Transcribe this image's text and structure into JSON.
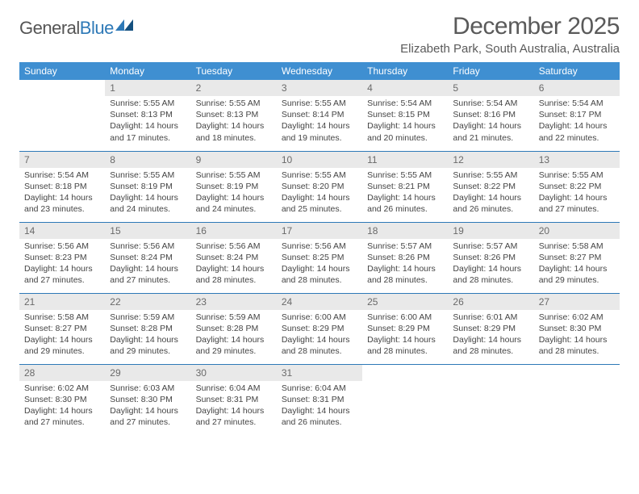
{
  "brand": {
    "text1": "General",
    "text2": "Blue",
    "mark_color": "#2e79b7",
    "text1_color": "#555555"
  },
  "title": {
    "month": "December 2025",
    "location": "Elizabeth Park, South Australia, Australia"
  },
  "colors": {
    "header_bg": "#3f8fd1",
    "header_text": "#ffffff",
    "daynum_bg": "#e9e9e9",
    "daynum_text": "#6a6a6a",
    "row_border": "#2e79b7",
    "body_text": "#444444"
  },
  "weekdays": [
    "Sunday",
    "Monday",
    "Tuesday",
    "Wednesday",
    "Thursday",
    "Friday",
    "Saturday"
  ],
  "weeks": [
    [
      {
        "n": "",
        "sunrise": "",
        "sunset": "",
        "daylight": ""
      },
      {
        "n": "1",
        "sunrise": "Sunrise: 5:55 AM",
        "sunset": "Sunset: 8:13 PM",
        "daylight": "Daylight: 14 hours and 17 minutes."
      },
      {
        "n": "2",
        "sunrise": "Sunrise: 5:55 AM",
        "sunset": "Sunset: 8:13 PM",
        "daylight": "Daylight: 14 hours and 18 minutes."
      },
      {
        "n": "3",
        "sunrise": "Sunrise: 5:55 AM",
        "sunset": "Sunset: 8:14 PM",
        "daylight": "Daylight: 14 hours and 19 minutes."
      },
      {
        "n": "4",
        "sunrise": "Sunrise: 5:54 AM",
        "sunset": "Sunset: 8:15 PM",
        "daylight": "Daylight: 14 hours and 20 minutes."
      },
      {
        "n": "5",
        "sunrise": "Sunrise: 5:54 AM",
        "sunset": "Sunset: 8:16 PM",
        "daylight": "Daylight: 14 hours and 21 minutes."
      },
      {
        "n": "6",
        "sunrise": "Sunrise: 5:54 AM",
        "sunset": "Sunset: 8:17 PM",
        "daylight": "Daylight: 14 hours and 22 minutes."
      }
    ],
    [
      {
        "n": "7",
        "sunrise": "Sunrise: 5:54 AM",
        "sunset": "Sunset: 8:18 PM",
        "daylight": "Daylight: 14 hours and 23 minutes."
      },
      {
        "n": "8",
        "sunrise": "Sunrise: 5:55 AM",
        "sunset": "Sunset: 8:19 PM",
        "daylight": "Daylight: 14 hours and 24 minutes."
      },
      {
        "n": "9",
        "sunrise": "Sunrise: 5:55 AM",
        "sunset": "Sunset: 8:19 PM",
        "daylight": "Daylight: 14 hours and 24 minutes."
      },
      {
        "n": "10",
        "sunrise": "Sunrise: 5:55 AM",
        "sunset": "Sunset: 8:20 PM",
        "daylight": "Daylight: 14 hours and 25 minutes."
      },
      {
        "n": "11",
        "sunrise": "Sunrise: 5:55 AM",
        "sunset": "Sunset: 8:21 PM",
        "daylight": "Daylight: 14 hours and 26 minutes."
      },
      {
        "n": "12",
        "sunrise": "Sunrise: 5:55 AM",
        "sunset": "Sunset: 8:22 PM",
        "daylight": "Daylight: 14 hours and 26 minutes."
      },
      {
        "n": "13",
        "sunrise": "Sunrise: 5:55 AM",
        "sunset": "Sunset: 8:22 PM",
        "daylight": "Daylight: 14 hours and 27 minutes."
      }
    ],
    [
      {
        "n": "14",
        "sunrise": "Sunrise: 5:56 AM",
        "sunset": "Sunset: 8:23 PM",
        "daylight": "Daylight: 14 hours and 27 minutes."
      },
      {
        "n": "15",
        "sunrise": "Sunrise: 5:56 AM",
        "sunset": "Sunset: 8:24 PM",
        "daylight": "Daylight: 14 hours and 27 minutes."
      },
      {
        "n": "16",
        "sunrise": "Sunrise: 5:56 AM",
        "sunset": "Sunset: 8:24 PM",
        "daylight": "Daylight: 14 hours and 28 minutes."
      },
      {
        "n": "17",
        "sunrise": "Sunrise: 5:56 AM",
        "sunset": "Sunset: 8:25 PM",
        "daylight": "Daylight: 14 hours and 28 minutes."
      },
      {
        "n": "18",
        "sunrise": "Sunrise: 5:57 AM",
        "sunset": "Sunset: 8:26 PM",
        "daylight": "Daylight: 14 hours and 28 minutes."
      },
      {
        "n": "19",
        "sunrise": "Sunrise: 5:57 AM",
        "sunset": "Sunset: 8:26 PM",
        "daylight": "Daylight: 14 hours and 28 minutes."
      },
      {
        "n": "20",
        "sunrise": "Sunrise: 5:58 AM",
        "sunset": "Sunset: 8:27 PM",
        "daylight": "Daylight: 14 hours and 29 minutes."
      }
    ],
    [
      {
        "n": "21",
        "sunrise": "Sunrise: 5:58 AM",
        "sunset": "Sunset: 8:27 PM",
        "daylight": "Daylight: 14 hours and 29 minutes."
      },
      {
        "n": "22",
        "sunrise": "Sunrise: 5:59 AM",
        "sunset": "Sunset: 8:28 PM",
        "daylight": "Daylight: 14 hours and 29 minutes."
      },
      {
        "n": "23",
        "sunrise": "Sunrise: 5:59 AM",
        "sunset": "Sunset: 8:28 PM",
        "daylight": "Daylight: 14 hours and 29 minutes."
      },
      {
        "n": "24",
        "sunrise": "Sunrise: 6:00 AM",
        "sunset": "Sunset: 8:29 PM",
        "daylight": "Daylight: 14 hours and 28 minutes."
      },
      {
        "n": "25",
        "sunrise": "Sunrise: 6:00 AM",
        "sunset": "Sunset: 8:29 PM",
        "daylight": "Daylight: 14 hours and 28 minutes."
      },
      {
        "n": "26",
        "sunrise": "Sunrise: 6:01 AM",
        "sunset": "Sunset: 8:29 PM",
        "daylight": "Daylight: 14 hours and 28 minutes."
      },
      {
        "n": "27",
        "sunrise": "Sunrise: 6:02 AM",
        "sunset": "Sunset: 8:30 PM",
        "daylight": "Daylight: 14 hours and 28 minutes."
      }
    ],
    [
      {
        "n": "28",
        "sunrise": "Sunrise: 6:02 AM",
        "sunset": "Sunset: 8:30 PM",
        "daylight": "Daylight: 14 hours and 27 minutes."
      },
      {
        "n": "29",
        "sunrise": "Sunrise: 6:03 AM",
        "sunset": "Sunset: 8:30 PM",
        "daylight": "Daylight: 14 hours and 27 minutes."
      },
      {
        "n": "30",
        "sunrise": "Sunrise: 6:04 AM",
        "sunset": "Sunset: 8:31 PM",
        "daylight": "Daylight: 14 hours and 27 minutes."
      },
      {
        "n": "31",
        "sunrise": "Sunrise: 6:04 AM",
        "sunset": "Sunset: 8:31 PM",
        "daylight": "Daylight: 14 hours and 26 minutes."
      },
      {
        "n": "",
        "sunrise": "",
        "sunset": "",
        "daylight": ""
      },
      {
        "n": "",
        "sunrise": "",
        "sunset": "",
        "daylight": ""
      },
      {
        "n": "",
        "sunrise": "",
        "sunset": "",
        "daylight": ""
      }
    ]
  ]
}
